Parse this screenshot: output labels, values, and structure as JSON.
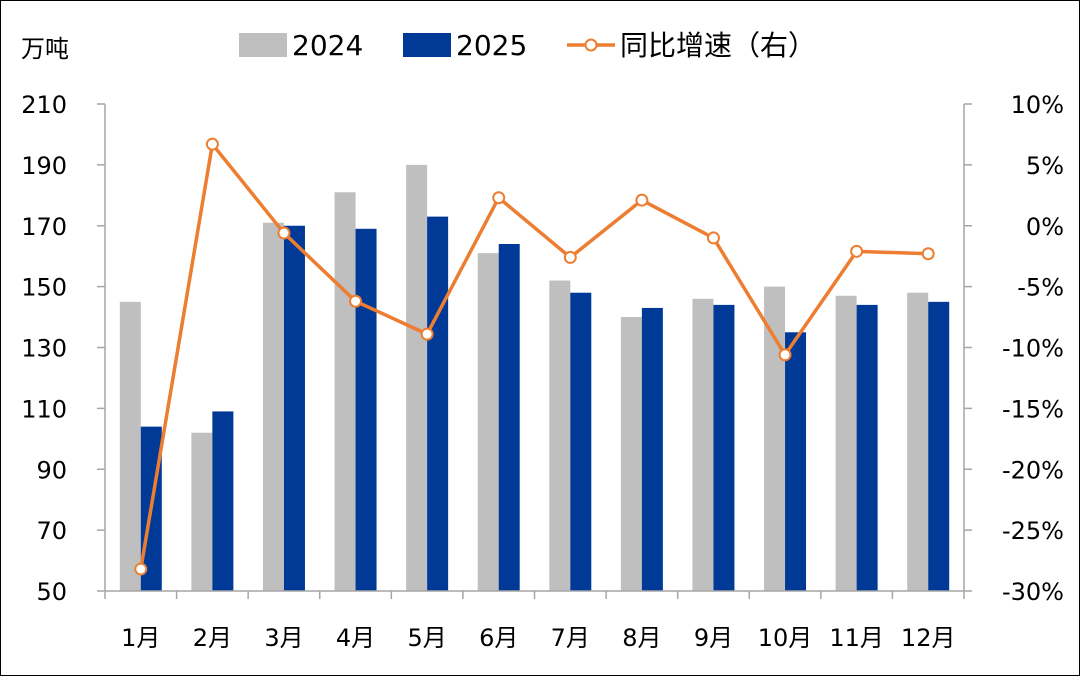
{
  "chart_data": {
    "type": "bar",
    "unit_label": "万吨",
    "categories": [
      "1月",
      "2月",
      "3月",
      "4月",
      "5月",
      "6月",
      "7月",
      "8月",
      "9月",
      "10月",
      "11月",
      "12月"
    ],
    "series": [
      {
        "name": "2024",
        "type": "bar",
        "color": "#BFBFBF",
        "values": [
          145,
          102,
          171,
          181,
          190,
          161,
          152,
          140,
          146,
          150,
          147,
          148
        ]
      },
      {
        "name": "2025",
        "type": "bar",
        "color": "#003A96",
        "values": [
          104,
          109,
          170,
          169,
          173,
          164,
          148,
          143,
          144,
          135,
          144,
          145
        ]
      },
      {
        "name": "同比增速（右）",
        "type": "line",
        "axis": "right",
        "color": "#ED7D31",
        "values": [
          -28.2,
          6.7,
          -0.6,
          -6.2,
          -8.9,
          2.3,
          -2.6,
          2.1,
          -1.0,
          -10.6,
          -2.1,
          -2.3
        ]
      }
    ],
    "y_left": {
      "min": 50,
      "max": 210,
      "ticks": [
        50,
        70,
        90,
        110,
        130,
        150,
        170,
        190,
        210
      ]
    },
    "y_right": {
      "min": -30,
      "max": 10,
      "ticks": [
        -30,
        -25,
        -20,
        -15,
        -10,
        -5,
        0,
        5,
        10
      ],
      "tick_labels": [
        "-30%",
        "-25%",
        "-20%",
        "-15%",
        "-10%",
        "-5%",
        "0%",
        "5%",
        "10%"
      ]
    },
    "legend": {
      "position": "top"
    },
    "grid": false
  }
}
